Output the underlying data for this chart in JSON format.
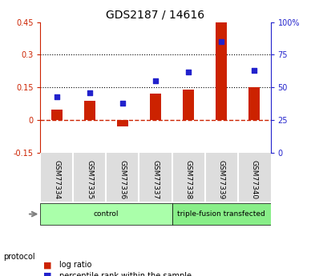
{
  "title": "GDS2187 / 14616",
  "samples": [
    "GSM77334",
    "GSM77335",
    "GSM77336",
    "GSM77337",
    "GSM77338",
    "GSM77339",
    "GSM77340"
  ],
  "log_ratio": [
    0.05,
    0.09,
    -0.03,
    0.12,
    0.14,
    0.46,
    0.15
  ],
  "percentile_rank": [
    43,
    46,
    38,
    55,
    62,
    85,
    63
  ],
  "left_ylim": [
    -0.15,
    0.45
  ],
  "right_ylim": [
    0,
    100
  ],
  "left_yticks": [
    -0.15,
    0.0,
    0.15,
    0.3,
    0.45
  ],
  "right_yticks": [
    0,
    25,
    50,
    75,
    100
  ],
  "right_yticklabels": [
    "0",
    "25",
    "50",
    "75",
    "100%"
  ],
  "left_yticklabels": [
    "-0.15",
    "0",
    "0.15",
    "0.3",
    "0.45"
  ],
  "hlines": [
    0.15,
    0.3
  ],
  "bar_color": "#cc2200",
  "dot_color": "#2222cc",
  "zero_line_color": "#cc2200",
  "hline_color": "#000000",
  "groups": [
    {
      "label": "control",
      "start": 0,
      "end": 3,
      "color": "#aaffaa"
    },
    {
      "label": "triple-fusion transfected",
      "start": 4,
      "end": 6,
      "color": "#88ee88"
    }
  ],
  "protocol_label": "protocol",
  "legend_items": [
    {
      "color": "#cc2200",
      "label": "log ratio"
    },
    {
      "color": "#2222cc",
      "label": "percentile rank within the sample"
    }
  ],
  "background_color": "#ffffff",
  "plot_bg_color": "#ffffff",
  "tick_label_color_left": "#cc2200",
  "tick_label_color_right": "#2222cc"
}
